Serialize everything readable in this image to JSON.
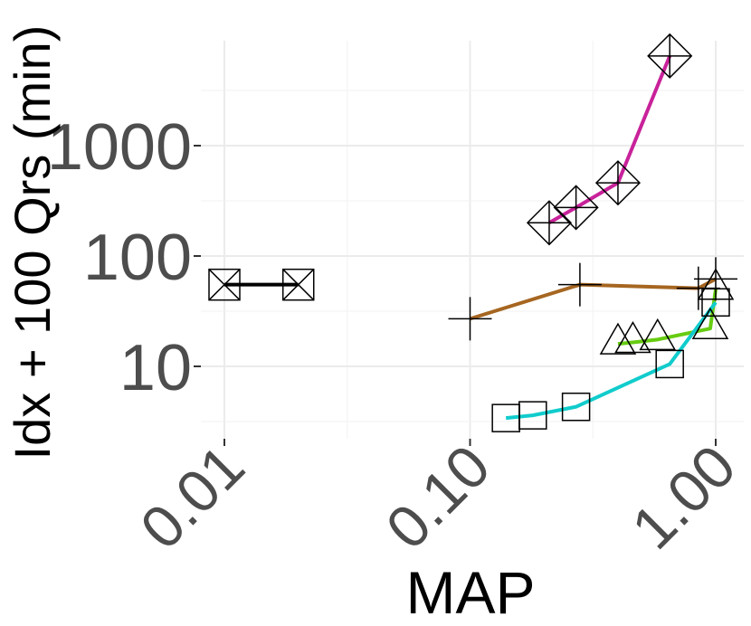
{
  "chart_data": {
    "type": "line",
    "title": "",
    "xlabel": "MAP",
    "ylabel": "Idx + 100 Qrs (min)",
    "x_scale": "log10",
    "y_scale": "log10",
    "xlim": [
      0.0085,
      1.2
    ],
    "ylim": [
      2.8,
      10000
    ],
    "x_ticks": [
      {
        "value": 0.01,
        "label": "0.01"
      },
      {
        "value": 0.1,
        "label": "0.10"
      },
      {
        "value": 1.0,
        "label": "1.00"
      }
    ],
    "y_ticks": [
      {
        "value": 10,
        "label": "10"
      },
      {
        "value": 100,
        "label": "100"
      },
      {
        "value": 1000,
        "label": "1000"
      }
    ],
    "grid": true,
    "legend": "none",
    "series": [
      {
        "color": "#000000",
        "marker": "square-x",
        "points": [
          [
            0.01,
            55
          ],
          [
            0.02,
            55
          ]
        ]
      },
      {
        "color": "#a66621",
        "marker": "plus",
        "points": [
          [
            0.1,
            27
          ],
          [
            0.28,
            55
          ],
          [
            0.85,
            51
          ],
          [
            1.0,
            62
          ]
        ]
      },
      {
        "color": "#c8229a",
        "marker": "diamond-plus",
        "points": [
          [
            0.21,
            200
          ],
          [
            0.27,
            275
          ],
          [
            0.4,
            460
          ],
          [
            0.65,
            6500
          ]
        ]
      },
      {
        "color": "#66cc11",
        "marker": "triangle",
        "points": [
          [
            0.4,
            16
          ],
          [
            0.46,
            16.5
          ],
          [
            0.58,
            17.5
          ],
          [
            0.95,
            22
          ],
          [
            1.0,
            50
          ]
        ]
      },
      {
        "color": "#11cccc",
        "marker": "square",
        "points": [
          [
            0.14,
            3.4
          ],
          [
            0.18,
            3.6
          ],
          [
            0.27,
            4.3
          ],
          [
            0.65,
            10.5
          ],
          [
            1.0,
            38
          ]
        ]
      }
    ]
  }
}
